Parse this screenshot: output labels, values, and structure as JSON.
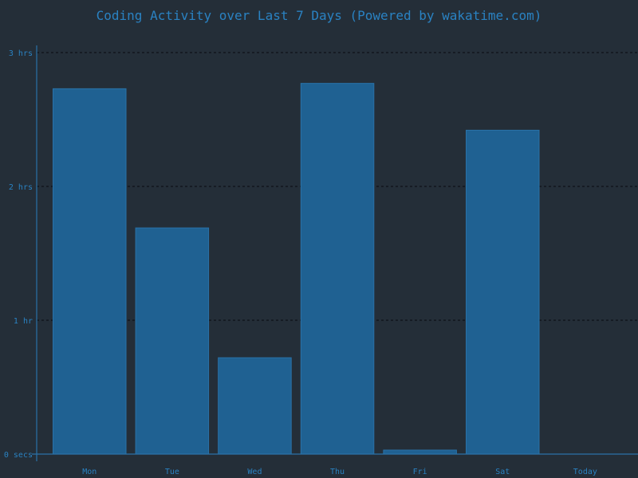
{
  "chart_data": {
    "type": "bar",
    "title": "Coding Activity over Last 7 Days (Powered by wakatime.com)",
    "categories": [
      "Mon",
      "Tue",
      "Wed",
      "Thu",
      "Fri",
      "Sat",
      "Today"
    ],
    "values_hours": [
      2.73,
      1.69,
      0.72,
      2.77,
      0.03,
      2.42,
      0
    ],
    "ylim_hours": [
      0,
      3
    ],
    "y_ticks": [
      {
        "value": 0,
        "label": "0 secs"
      },
      {
        "value": 1,
        "label": "1 hr"
      },
      {
        "value": 2,
        "label": "2 hrs"
      },
      {
        "value": 3,
        "label": "3 hrs"
      }
    ],
    "grid": true,
    "colors": {
      "background": "#242e38",
      "bar_fill": "#1f6192",
      "bar_stroke": "#2a72a8",
      "text": "#2a82c2",
      "axis": "#2a72a8",
      "gridline": "#0f1318"
    }
  }
}
